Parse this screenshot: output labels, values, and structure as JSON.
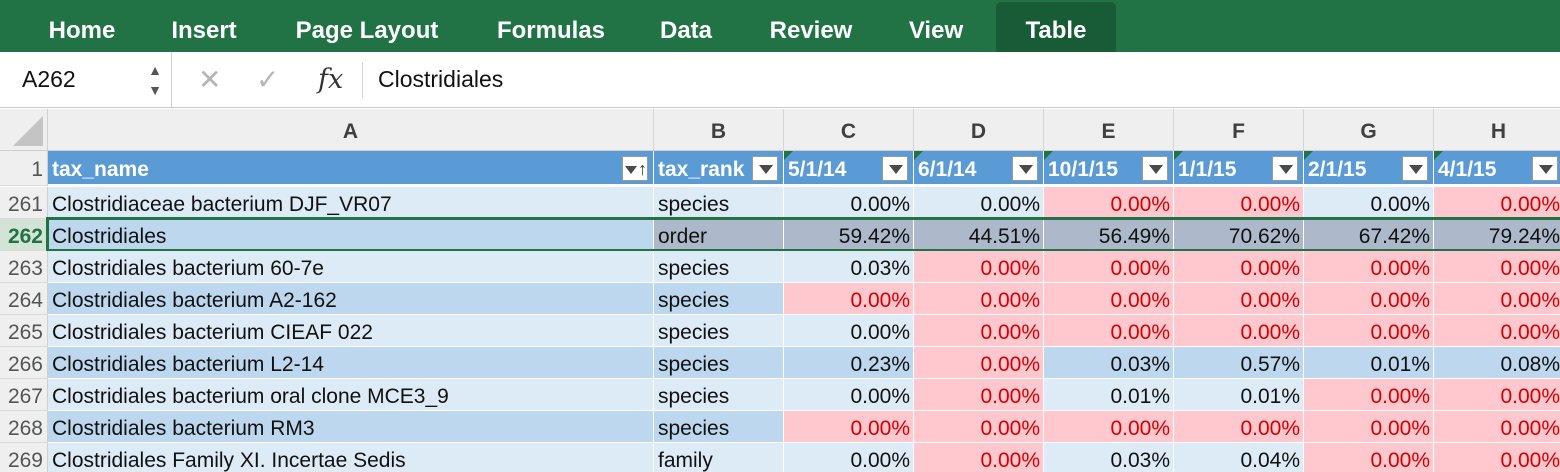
{
  "ribbon": {
    "tabs": [
      {
        "label": "Home"
      },
      {
        "label": "Insert"
      },
      {
        "label": "Page Layout"
      },
      {
        "label": "Formulas"
      },
      {
        "label": "Data"
      },
      {
        "label": "Review"
      },
      {
        "label": "View"
      },
      {
        "label": "Table"
      }
    ],
    "active_tab": "Table",
    "color": "#217346"
  },
  "formula_bar": {
    "name_box": "A262",
    "content": "Clostridiales",
    "icons": [
      "cancel-icon",
      "enter-icon",
      "fx-icon"
    ]
  },
  "columns": [
    "A",
    "B",
    "C",
    "D",
    "E",
    "F",
    "G",
    "H"
  ],
  "header_row": {
    "number": "1",
    "cells": [
      "tax_name",
      "tax_rank",
      "5/1/14",
      "6/1/14",
      "10/1/15",
      "1/1/15",
      "2/1/15",
      "4/1/15"
    ]
  },
  "rows": [
    {
      "number": "261",
      "cells": [
        "Clostridiaceae bacterium DJF_VR07",
        "species",
        "0.00%",
        "0.00%",
        "0.00%",
        "0.00%",
        "0.00%",
        "0.00%"
      ]
    },
    {
      "number": "262",
      "cells": [
        "Clostridiales",
        "order",
        "59.42%",
        "44.51%",
        "56.49%",
        "70.62%",
        "67.42%",
        "79.24%"
      ]
    },
    {
      "number": "263",
      "cells": [
        "Clostridiales bacterium 60-7e",
        "species",
        "0.03%",
        "0.00%",
        "0.00%",
        "0.00%",
        "0.00%",
        "0.00%"
      ]
    },
    {
      "number": "264",
      "cells": [
        "Clostridiales bacterium A2-162",
        "species",
        "0.00%",
        "0.00%",
        "0.00%",
        "0.00%",
        "0.00%",
        "0.00%"
      ]
    },
    {
      "number": "265",
      "cells": [
        "Clostridiales bacterium CIEAF 022",
        "species",
        "0.00%",
        "0.00%",
        "0.00%",
        "0.00%",
        "0.00%",
        "0.00%"
      ]
    },
    {
      "number": "266",
      "cells": [
        "Clostridiales bacterium L2-14",
        "species",
        "0.23%",
        "0.00%",
        "0.03%",
        "0.57%",
        "0.01%",
        "0.08%"
      ]
    },
    {
      "number": "267",
      "cells": [
        "Clostridiales bacterium oral clone MCE3_9",
        "species",
        "0.00%",
        "0.00%",
        "0.01%",
        "0.01%",
        "0.00%",
        "0.00%"
      ]
    },
    {
      "number": "268",
      "cells": [
        "Clostridiales bacterium RM3",
        "species",
        "0.00%",
        "0.00%",
        "0.00%",
        "0.00%",
        "0.00%",
        "0.00%"
      ]
    },
    {
      "number": "269",
      "cells": [
        "Clostridiales Family XI. Incertae Sedis",
        "family",
        "0.00%",
        "0.00%",
        "0.03%",
        "0.04%",
        "0.00%",
        "0.00%"
      ]
    }
  ],
  "red_cells": [
    [
      0,
      0,
      1,
      1,
      0,
      1,
      0
    ],
    [
      0,
      0,
      0,
      0,
      0,
      0,
      0
    ],
    [
      0,
      1,
      1,
      1,
      1,
      1,
      1
    ],
    [
      1,
      1,
      1,
      1,
      1,
      1,
      0
    ],
    [
      0,
      1,
      1,
      1,
      1,
      1,
      0
    ],
    [
      0,
      1,
      0,
      0,
      0,
      0,
      0
    ],
    [
      0,
      1,
      0,
      0,
      1,
      1,
      0
    ],
    [
      1,
      1,
      1,
      1,
      1,
      1,
      0
    ],
    [
      0,
      1,
      0,
      0,
      1,
      1,
      0
    ]
  ],
  "selected_row": "262",
  "colors": {
    "band_light": "#ddebf7",
    "band_dark": "#bdd7ee",
    "selected_row": "#adb9ca",
    "red_fill": "#ffc7ce",
    "red_text": "#d40000",
    "header_fill": "#5b9bd5"
  }
}
